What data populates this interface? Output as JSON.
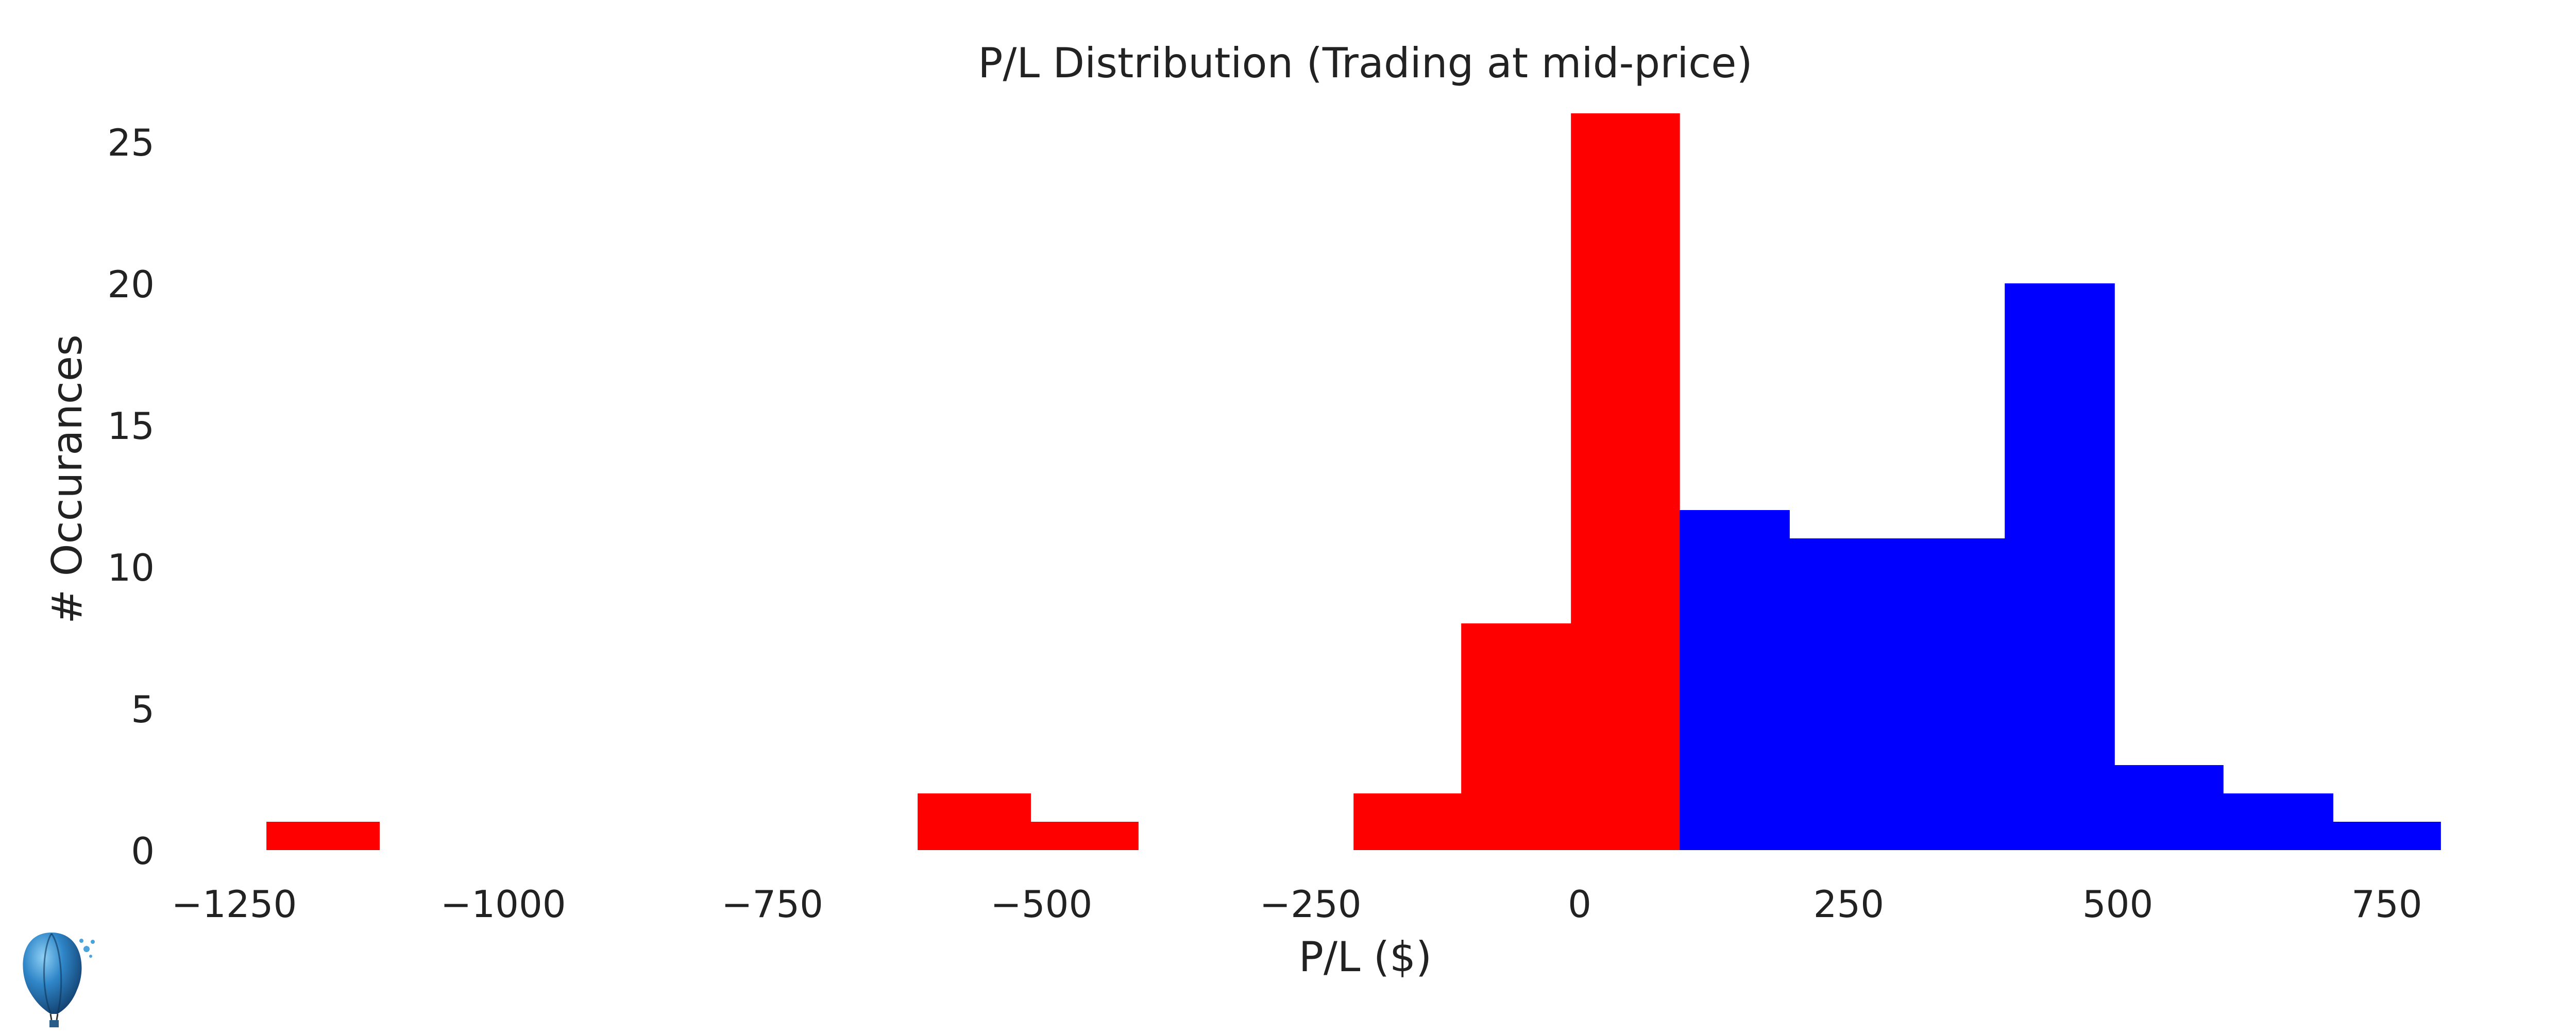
{
  "chart_data": {
    "type": "bar",
    "title": "P/L Distribution (Trading at mid-price)",
    "xlabel": "P/L ($)",
    "ylabel": "# Occurances",
    "xlim": [
      -1300,
      830
    ],
    "ylim": [
      0,
      26
    ],
    "grid": false,
    "legend": "none",
    "x_ticks": [
      -1250,
      -1000,
      -750,
      -500,
      -250,
      0,
      250,
      500,
      750
    ],
    "x_tick_labels": [
      "−1250",
      "−1000",
      "−750",
      "−500",
      "−250",
      "0",
      "250",
      "500",
      "750"
    ],
    "y_ticks": [
      0,
      5,
      10,
      15,
      20,
      25
    ],
    "y_tick_labels": [
      "0",
      "5",
      "10",
      "15",
      "20",
      "25"
    ],
    "series": [
      {
        "color": "#ff0000",
        "bins": [
          {
            "x0": -1220,
            "x1": -1115,
            "count": 1
          },
          {
            "x0": -615,
            "x1": -510,
            "count": 2
          },
          {
            "x0": -510,
            "x1": -410,
            "count": 1
          },
          {
            "x0": -210,
            "x1": -110,
            "count": 2
          },
          {
            "x0": -110,
            "x1": -8,
            "count": 8
          },
          {
            "x0": -8,
            "x1": 93,
            "count": 26
          }
        ]
      },
      {
        "color": "#0000ff",
        "bins": [
          {
            "x0": 93,
            "x1": 195,
            "count": 12
          },
          {
            "x0": 195,
            "x1": 295,
            "count": 11
          },
          {
            "x0": 295,
            "x1": 395,
            "count": 11
          },
          {
            "x0": 395,
            "x1": 497,
            "count": 20
          },
          {
            "x0": 497,
            "x1": 598,
            "count": 3
          },
          {
            "x0": 598,
            "x1": 700,
            "count": 2
          },
          {
            "x0": 700,
            "x1": 800,
            "count": 1
          }
        ]
      }
    ]
  }
}
